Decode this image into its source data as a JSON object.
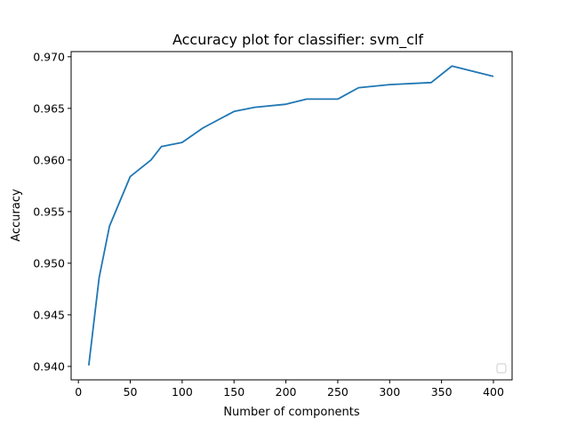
{
  "chart_data": {
    "type": "line",
    "title": "Accuracy plot for classifier: svm_clf",
    "xlabel": "Number of components",
    "ylabel": "Accuracy",
    "xlim": [
      -7,
      418
    ],
    "ylim": [
      0.9387,
      0.9705
    ],
    "xticks": [
      0,
      50,
      100,
      150,
      200,
      250,
      300,
      350,
      400
    ],
    "xtick_labels": [
      "0",
      "50",
      "100",
      "150",
      "200",
      "250",
      "300",
      "350",
      "400"
    ],
    "yticks": [
      0.94,
      0.945,
      0.95,
      0.955,
      0.96,
      0.965,
      0.97
    ],
    "ytick_labels": [
      "0.940",
      "0.945",
      "0.950",
      "0.955",
      "0.960",
      "0.965",
      "0.970"
    ],
    "grid": false,
    "legend": {
      "placement": "lower-right",
      "entries": []
    },
    "series": [
      {
        "color": "#1f77b4",
        "x": [
          10,
          20,
          30,
          50,
          70,
          80,
          100,
          120,
          150,
          170,
          200,
          220,
          250,
          270,
          300,
          340,
          360,
          400
        ],
        "y": [
          0.9401,
          0.9486,
          0.9536,
          0.9584,
          0.96,
          0.9613,
          0.9617,
          0.9631,
          0.9647,
          0.9651,
          0.9654,
          0.9659,
          0.9659,
          0.967,
          0.9673,
          0.9675,
          0.9691,
          0.9681
        ]
      }
    ]
  }
}
